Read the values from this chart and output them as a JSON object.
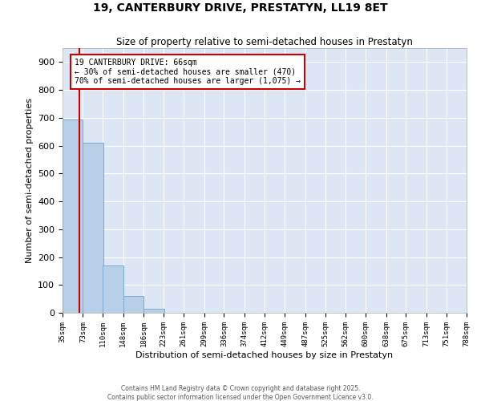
{
  "title": "19, CANTERBURY DRIVE, PRESTATYN, LL19 8ET",
  "subtitle": "Size of property relative to semi-detached houses in Prestatyn",
  "xlabel": "Distribution of semi-detached houses by size in Prestatyn",
  "ylabel": "Number of semi-detached properties",
  "background_color": "#dce6f5",
  "bar_color": "#b8cfe8",
  "bar_edge_color": "#7aaad0",
  "bins": [
    35,
    73,
    110,
    148,
    186,
    223,
    261,
    299,
    336,
    374,
    412,
    449,
    487,
    525,
    562,
    600,
    638,
    675,
    713,
    751,
    788
  ],
  "bin_labels": [
    "35sqm",
    "73sqm",
    "110sqm",
    "148sqm",
    "186sqm",
    "223sqm",
    "261sqm",
    "299sqm",
    "336sqm",
    "374sqm",
    "412sqm",
    "449sqm",
    "487sqm",
    "525sqm",
    "562sqm",
    "600sqm",
    "638sqm",
    "675sqm",
    "713sqm",
    "751sqm",
    "788sqm"
  ],
  "bar_heights": [
    695,
    610,
    170,
    60,
    15,
    0,
    0,
    0,
    0,
    0,
    0,
    0,
    0,
    0,
    0,
    0,
    0,
    0,
    0,
    0
  ],
  "ylim": [
    0,
    950
  ],
  "yticks": [
    0,
    100,
    200,
    300,
    400,
    500,
    600,
    700,
    800,
    900
  ],
  "property_size": 66,
  "property_line_color": "#cc0000",
  "annotation_title": "19 CANTERBURY DRIVE: 66sqm",
  "annotation_line1": "← 30% of semi-detached houses are smaller (470)",
  "annotation_line2": "70% of semi-detached houses are larger (1,075) →",
  "annotation_box_color": "#cc0000",
  "annotation_text_color": "#000000",
  "footer_line1": "Contains HM Land Registry data © Crown copyright and database right 2025.",
  "footer_line2": "Contains public sector information licensed under the Open Government Licence v3.0."
}
